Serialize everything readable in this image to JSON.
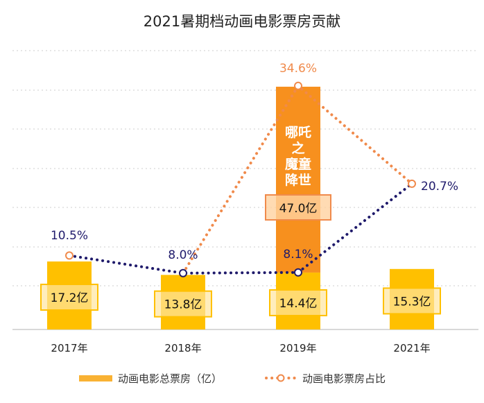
{
  "chart_data": {
    "type": "bar+line",
    "title": "2021暑期档动画电影票房贡献",
    "categories": [
      "2017年",
      "2018年",
      "2019年",
      "2021年"
    ],
    "bar_series": [
      {
        "name": "动画电影总票房（亿）",
        "values": [
          17.2,
          13.8,
          14.4,
          15.3
        ],
        "labels": [
          "17.2亿",
          "13.8亿",
          "14.4亿",
          "15.3亿"
        ],
        "color": "#FFC000"
      },
      {
        "name": "",
        "values": [
          0,
          0,
          47.0,
          0
        ],
        "labels": [
          "",
          "",
          "47.0亿",
          ""
        ],
        "color": "#F7901E",
        "annotation": "哪吒之魔童降世",
        "annotation_lines": [
          "哪吒",
          "之",
          "魔童",
          "降世"
        ]
      }
    ],
    "line_series": [
      {
        "name": "动画电影票房占比",
        "values": [
          10.5,
          8.0,
          8.1,
          20.7
        ],
        "labels": [
          "10.5%",
          "8.0%",
          "8.1%",
          "20.7%"
        ],
        "color": "#1F1A6B"
      },
      {
        "name": "",
        "values": [
          null,
          8.0,
          34.6,
          20.7
        ],
        "labels": [
          "",
          "",
          "34.6%",
          ""
        ],
        "color": "#F08A4B"
      }
    ],
    "grid": "dotted horizontal",
    "legend": "bottom",
    "legend_items": [
      "动画电影总票房（亿）",
      "动画电影票房占比"
    ]
  }
}
